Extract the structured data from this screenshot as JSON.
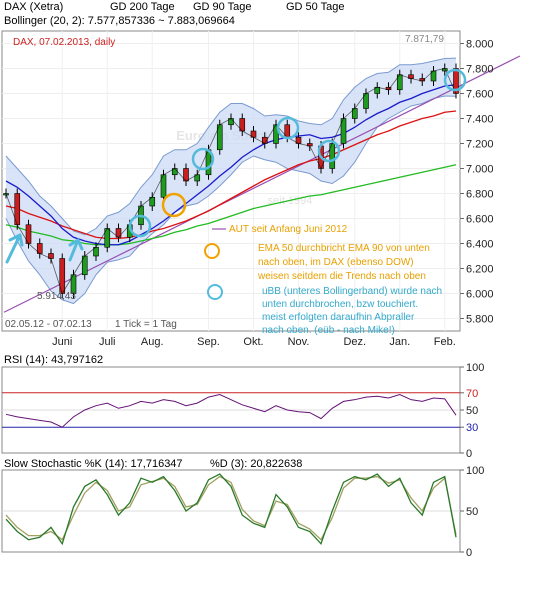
{
  "colors": {
    "price": "#000000",
    "up_candle": "#1f9b1f",
    "down_candle": "#c91f1f",
    "sma200": "#22bb22",
    "sma90": "#dd1111",
    "sma50": "#1a1acc",
    "bollinger_fill": "#c9d9f5",
    "bollinger_line": "#7a9ad0",
    "trendline": "#9a4fb2",
    "rsi": "#661177",
    "rsi_ref_high": "#cc2222",
    "rsi_ref_low": "#2222aa",
    "stoch_k": "#2a7a2a",
    "stoch_d": "#a0a060",
    "annotation_text": "#e8a000",
    "annotation_text2": "#33aacc",
    "marker_cyan": "#55bbdd",
    "marker_orange": "#f2a200",
    "title_red": "#cc2222"
  },
  "legend": {
    "price": {
      "label": "DAX (Xetra)",
      "swatch": "#ffffff"
    },
    "sma200": {
      "label": "GD 200 Tage",
      "swatch": "#22bb22"
    },
    "sma90": {
      "label": "GD 90 Tage",
      "swatch": "#dd1111"
    },
    "sma50": {
      "label": "GD 50 Tage",
      "swatch": "#1a1acc"
    },
    "bollinger": {
      "label": "Bollinger (20, 2): 7.577,857336 ~ 7.883,069664",
      "swatch": "#c9d9f5"
    }
  },
  "main_panel": {
    "title": "DAX, 07.02.2013,  daily",
    "high_label": "7.871,79",
    "low_label": "5.914,43",
    "date_range": "02.05.12 - 07.02.13",
    "tick_info": "1 Tick = 1 Tag",
    "watermark_1": "Euro     am Sonntag",
    "watermark_2": "seit 1994",
    "y_ticks": [
      "8.000",
      "7.800",
      "7.600",
      "7.400",
      "7.200",
      "7.000",
      "6.800",
      "6.600",
      "6.400",
      "6.200",
      "6.000",
      "5.800"
    ],
    "x_ticks": [
      "Juni",
      "Juli",
      "Aug.",
      "Sep.",
      "Okt.",
      "Nov.",
      "Dez.",
      "Jan.",
      "Feb."
    ]
  },
  "annotation": {
    "line1": "AUT seit Anfang Juni 2012",
    "line2": "EMA 50 durchbricht EMA 90 von unten",
    "line3": "nach oben, im DAX (ebenso DOW)",
    "line4": "weisen seitdem die Trends nach oben",
    "line5": "uBB (unteres Bollingerband) wurde nach",
    "line6": "unten durchbrochen, bzw touchiert.",
    "line7": "meist erfolgten daraufhin Abpraller",
    "line8": "nach oben. (eüb - nach Mike!)"
  },
  "rsi_panel": {
    "label": "RSI (14): 43,797162",
    "y_ticks": [
      "100",
      "70",
      "50",
      "30",
      "0"
    ]
  },
  "stoch_panel": {
    "label_k": "Slow Stochastic %K (14): 17,716347",
    "label_d": "%D (3): 20,822638",
    "y_ticks": [
      "100",
      "50",
      "0"
    ]
  },
  "chart_data": [
    {
      "type": "line",
      "title": "DAX, 07.02.2013,  daily",
      "note": "candlestick price chart with moving averages and Bollinger bands",
      "x": [
        "2012-05-02",
        "2012-05-09",
        "2012-05-16",
        "2012-05-23",
        "2012-05-30",
        "2012-06-06",
        "2012-06-13",
        "2012-06-20",
        "2012-06-27",
        "2012-07-04",
        "2012-07-11",
        "2012-07-18",
        "2012-07-25",
        "2012-08-01",
        "2012-08-08",
        "2012-08-15",
        "2012-08-22",
        "2012-08-29",
        "2012-09-05",
        "2012-09-12",
        "2012-09-19",
        "2012-09-26",
        "2012-10-03",
        "2012-10-10",
        "2012-10-17",
        "2012-10-24",
        "2012-10-31",
        "2012-11-07",
        "2012-11-14",
        "2012-11-21",
        "2012-11-28",
        "2012-12-05",
        "2012-12-12",
        "2012-12-19",
        "2012-12-26",
        "2013-01-02",
        "2013-01-09",
        "2013-01-16",
        "2013-01-23",
        "2013-01-30",
        "2013-02-07"
      ],
      "ylim": [
        5700,
        8100
      ],
      "series": [
        {
          "name": "DAX (Xetra)",
          "values": [
            6800,
            6550,
            6400,
            6320,
            6280,
            6000,
            6150,
            6300,
            6370,
            6520,
            6450,
            6550,
            6700,
            6770,
            6950,
            7000,
            6900,
            6950,
            7150,
            7350,
            7400,
            7300,
            7250,
            7200,
            7350,
            7250,
            7200,
            7180,
            7000,
            7200,
            7400,
            7480,
            7600,
            7650,
            7630,
            7750,
            7720,
            7700,
            7780,
            7800,
            7600
          ]
        },
        {
          "name": "GD 200 Tage",
          "values": [
            6550,
            6530,
            6500,
            6480,
            6460,
            6430,
            6420,
            6400,
            6390,
            6390,
            6390,
            6400,
            6420,
            6440,
            6460,
            6490,
            6510,
            6540,
            6560,
            6590,
            6620,
            6650,
            6680,
            6700,
            6720,
            6740,
            6760,
            6780,
            6790,
            6810,
            6830,
            6850,
            6870,
            6890,
            6910,
            6930,
            6950,
            6970,
            6990,
            7010,
            7030
          ]
        },
        {
          "name": "GD 90 Tage",
          "values": [
            6700,
            6680,
            6640,
            6610,
            6580,
            6540,
            6510,
            6480,
            6450,
            6440,
            6440,
            6450,
            6470,
            6500,
            6520,
            6550,
            6580,
            6620,
            6660,
            6710,
            6760,
            6810,
            6860,
            6910,
            6950,
            6990,
            7030,
            7060,
            7080,
            7110,
            7150,
            7190,
            7230,
            7270,
            7300,
            7340,
            7370,
            7400,
            7420,
            7450,
            7460
          ]
        },
        {
          "name": "GD 50 Tage",
          "values": [
            6900,
            6850,
            6780,
            6700,
            6620,
            6520,
            6450,
            6420,
            6400,
            6390,
            6390,
            6420,
            6470,
            6520,
            6580,
            6650,
            6720,
            6790,
            6860,
            6940,
            7010,
            7090,
            7150,
            7200,
            7230,
            7250,
            7260,
            7270,
            7240,
            7250,
            7280,
            7330,
            7390,
            7440,
            7480,
            7530,
            7560,
            7600,
            7630,
            7660,
            7670
          ]
        },
        {
          "name": "Bollinger (20, 2) upper",
          "values": [
            7100,
            7000,
            6900,
            6780,
            6700,
            6600,
            6500,
            6470,
            6520,
            6620,
            6650,
            6720,
            6850,
            6950,
            7100,
            7150,
            7150,
            7200,
            7330,
            7450,
            7520,
            7520,
            7480,
            7420,
            7430,
            7420,
            7380,
            7360,
            7350,
            7400,
            7550,
            7650,
            7720,
            7760,
            7770,
            7830,
            7830,
            7840,
            7860,
            7880,
            7883
          ]
        },
        {
          "name": "Bollinger (20, 2) lower",
          "values": [
            6600,
            6420,
            6260,
            6150,
            6020,
            5950,
            5920,
            6000,
            6150,
            6250,
            6270,
            6300,
            6400,
            6480,
            6550,
            6650,
            6700,
            6720,
            6780,
            6860,
            6950,
            7050,
            7100,
            7070,
            7050,
            7000,
            6980,
            6960,
            6900,
            6880,
            6940,
            7050,
            7200,
            7330,
            7400,
            7450,
            7500,
            7520,
            7560,
            7580,
            7578
          ]
        }
      ]
    },
    {
      "type": "line",
      "title": "RSI (14): 43,797162",
      "ylim": [
        0,
        100
      ],
      "series": [
        {
          "name": "RSI (14)",
          "values": [
            45,
            42,
            40,
            38,
            36,
            30,
            42,
            50,
            55,
            58,
            52,
            55,
            60,
            58,
            62,
            60,
            55,
            58,
            65,
            68,
            62,
            56,
            52,
            48,
            55,
            50,
            48,
            47,
            40,
            52,
            60,
            62,
            65,
            66,
            64,
            68,
            62,
            60,
            64,
            63,
            44
          ]
        }
      ]
    },
    {
      "type": "line",
      "title": "Slow Stochastic %K (14): 17,716347",
      "ylim": [
        0,
        100
      ],
      "series": [
        {
          "name": "Slow Stochastic %K (14)",
          "values": [
            40,
            25,
            15,
            18,
            30,
            10,
            55,
            80,
            88,
            70,
            45,
            60,
            90,
            85,
            92,
            75,
            50,
            60,
            88,
            95,
            80,
            45,
            35,
            30,
            70,
            55,
            30,
            25,
            10,
            50,
            85,
            92,
            88,
            95,
            80,
            90,
            60,
            45,
            85,
            92,
            18
          ]
        },
        {
          "name": "%D (3)",
          "values": [
            45,
            30,
            20,
            20,
            25,
            15,
            45,
            72,
            85,
            75,
            50,
            55,
            82,
            86,
            90,
            80,
            55,
            58,
            82,
            92,
            85,
            52,
            38,
            32,
            62,
            58,
            35,
            28,
            15,
            42,
            78,
            90,
            90,
            92,
            84,
            88,
            66,
            50,
            78,
            90,
            21
          ]
        }
      ]
    }
  ]
}
